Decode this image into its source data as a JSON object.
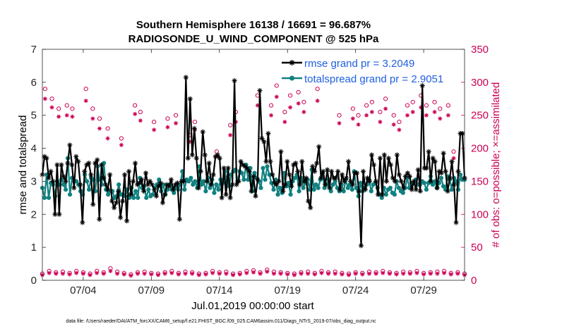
{
  "chart_data": {
    "type": "line",
    "title": "Southern Hemisphere 16138 / 16691 = 96.687%",
    "subtitle": "RADIOSONDE_U_WIND_COMPONENT @ 525 hPa",
    "xlabel": "Jul.01,2019 00:00:00 start",
    "ylabel_left": "rmse and totalspread",
    "ylabel_right": "# of obs: o=possible; ×=assimilated",
    "xlim": [
      1,
      32
    ],
    "ylim_left": [
      0,
      7
    ],
    "ylim_right": [
      0,
      350
    ],
    "x_ticks": [
      4,
      9,
      14,
      19,
      24,
      29
    ],
    "x_tick_labels": [
      "07/04",
      "07/09",
      "07/14",
      "07/19",
      "07/24",
      "07/29"
    ],
    "y_ticks_left": [
      0,
      1,
      2,
      3,
      4,
      5,
      6,
      7
    ],
    "y_ticks_right": [
      0,
      50,
      100,
      150,
      200,
      250,
      300,
      350
    ],
    "colors": {
      "rmse": "#000000",
      "spread": "#118080",
      "obs": "#cc0055",
      "legend_text": "#1f5fe0"
    },
    "legend": [
      {
        "name": "rmse grand pr = 3.2049",
        "key": "rmse"
      },
      {
        "name": "totalspread grand pr = 2.9051",
        "key": "spread"
      }
    ],
    "footer": "data file: /Users/raeder/DAI/ATM_forcXX/CAM6_setup/f.e21.FHIST_BGC.f09_025.CAM6assim.011/Diags_NTrS_2019-07/obs_diag_output.nc",
    "series": [
      {
        "name": "rmse",
        "axis": "left",
        "values": [
          3.2,
          3.75,
          3.7,
          3.1,
          3.3,
          3.0,
          2.0,
          3.5,
          2.0,
          3.5,
          3.15,
          3.0,
          3.55,
          4.1,
          3.5,
          2.8,
          3.75,
          3.6,
          2.9,
          1.75,
          3.3,
          3.5,
          3.55,
          3.2,
          2.3,
          3.55,
          3.65,
          1.85,
          3.5,
          3.1,
          2.9,
          2.75,
          3.2,
          2.4,
          2.2,
          2.35,
          2.7,
          1.9,
          2.4,
          3.2,
          1.8,
          3.3,
          2.6,
          3.0,
          3.55,
          2.9,
          2.95,
          3.05,
          2.7,
          3.25,
          2.9,
          3.0,
          2.9,
          2.75,
          2.55,
          2.85,
          2.95,
          2.35,
          2.6,
          2.9,
          2.85,
          3.05,
          2.75,
          2.9,
          2.95,
          1.85,
          3.0,
          3.0,
          6.15,
          3.7,
          5.5,
          3.8,
          4.6,
          3.7,
          2.8,
          3.3,
          4.5,
          3.8,
          3.0,
          3.55,
          2.9,
          3.2,
          3.75,
          3.8,
          3.7,
          2.5,
          3.4,
          2.6,
          3.4,
          2.5,
          2.9,
          6.05,
          2.9,
          3.0,
          3.6,
          3.5,
          3.45,
          3.4,
          3.3,
          2.7,
          3.15,
          2.55,
          3.05,
          5.75,
          4.3,
          4.2,
          3.6,
          4.45,
          3.6,
          3.2,
          2.95,
          2.9,
          3.0,
          3.9,
          2.7,
          2.9,
          3.6,
          3.2,
          2.85,
          3.5,
          3.55,
          3.3,
          2.9,
          3.6,
          3.0,
          3.1,
          2.4,
          2.2,
          3.45,
          3.3,
          3.55,
          4.05,
          3.1,
          3.3,
          2.9,
          3.35,
          2.8,
          3.3,
          3.1,
          3.1,
          3.3,
          2.75,
          3.2,
          3.0,
          3.1,
          3.6,
          3.0,
          2.9,
          3.25,
          3.25,
          2.7,
          1.05,
          3.3,
          2.75,
          3.1,
          3.0,
          3.8,
          3.5,
          3.0,
          2.6,
          3.7,
          2.6,
          3.8,
          3.0,
          3.7,
          3.5,
          3.1,
          3.0,
          3.8,
          3.2,
          3.0,
          2.8,
          3.15,
          3.25,
          3.15,
          2.75,
          3.0,
          2.75,
          3.35,
          2.7,
          5.9,
          3.4,
          3.4,
          3.9,
          3.0,
          3.7,
          3.6,
          2.8,
          3.3,
          3.25,
          3.85,
          3.3,
          2.7,
          3.1,
          3.6,
          2.9,
          1.75,
          3.3,
          4.45,
          4.45,
          3.1
        ]
      },
      {
        "name": "totalspread",
        "axis": "left",
        "values": [
          2.8,
          2.5,
          3.2,
          2.5,
          2.95,
          2.9,
          2.55,
          3.0,
          2.9,
          3.05,
          2.9,
          2.75,
          3.7,
          2.6,
          3.1,
          3.0,
          3.0,
          2.9,
          2.7,
          2.6,
          3.2,
          3.0,
          2.75,
          3.1,
          3.05,
          2.7,
          3.45,
          3.05,
          2.9,
          3.55,
          2.75,
          2.6,
          2.7,
          2.7,
          2.5,
          2.55,
          2.9,
          2.6,
          2.6,
          2.55,
          2.75,
          2.5,
          2.8,
          2.5,
          2.7,
          2.5,
          3.1,
          2.8,
          2.85,
          2.5,
          2.75,
          2.55,
          2.6,
          2.8,
          2.9,
          3.05,
          2.7,
          2.9,
          2.6,
          2.75,
          2.9,
          2.75,
          2.65,
          2.8,
          2.75,
          2.9,
          3.3,
          2.75,
          3.05,
          3.0,
          3.1,
          2.9,
          3.0,
          2.8,
          3.45,
          2.9,
          3.0,
          2.7,
          3.1,
          2.8,
          3.05,
          2.65,
          2.9,
          2.75,
          3.05,
          2.95,
          3.3,
          3.0,
          2.85,
          3.2,
          3.3,
          3.35,
          3.0,
          3.3,
          3.25,
          3.05,
          3.5,
          3.05,
          3.4,
          2.7,
          3.25,
          3.1,
          3.0,
          2.8,
          3.4,
          3.05,
          3.45,
          3.2,
          2.95,
          2.75,
          3.05,
          2.6,
          2.8,
          2.65,
          3.25,
          2.85,
          2.95,
          2.6,
          3.0,
          3.1,
          3.2,
          2.7,
          3.1,
          2.8,
          2.95,
          3.05,
          2.75,
          3.35,
          2.75,
          2.9,
          2.8,
          3.05,
          3.25,
          2.8,
          2.9,
          3.05,
          2.7,
          2.9,
          3.0,
          2.8,
          2.7,
          2.9,
          2.7,
          3.05,
          2.8,
          2.9,
          2.75,
          3.3,
          2.8,
          2.55,
          2.95,
          2.7,
          2.8,
          2.9,
          3.05,
          2.7,
          2.9,
          2.95,
          2.8,
          2.6,
          2.5,
          2.8,
          2.6,
          2.75,
          2.8,
          2.65,
          2.6,
          3.0,
          2.8,
          2.7,
          2.65,
          2.8,
          3.1,
          2.8,
          2.95,
          2.95,
          3.05,
          2.9,
          2.9,
          3.0,
          2.95,
          2.75,
          2.95,
          3.15,
          2.9,
          3.0,
          2.8,
          2.95,
          3.1,
          2.85,
          2.75,
          3.15,
          3.05,
          2.75,
          3.1,
          3.0,
          2.75,
          3.2,
          3.05,
          3.05
        ]
      }
    ],
    "obs_high": {
      "axis": "right",
      "x": [
        1.2,
        1.7,
        2.2,
        2.8,
        3.2,
        4.2,
        4.7,
        5.2,
        5.8,
        6.8,
        7.8,
        8.2,
        9.2,
        10.2,
        10.8,
        11.8,
        12.2,
        13.8,
        14.8,
        15.2,
        16.8,
        17.8,
        18.2,
        18.8,
        19.2,
        19.8,
        20.2,
        21.2,
        22.8,
        23.8,
        24.2,
        24.8,
        25.2,
        25.8,
        26.2,
        26.8,
        27.2,
        27.8,
        28.2,
        28.8,
        29.2,
        29.8,
        30.2,
        30.8,
        31.2
      ],
      "possible": [
        290,
        275,
        260,
        265,
        260,
        290,
        260,
        245,
        230,
        215,
        265,
        255,
        240,
        245,
        250,
        220,
        240,
        195,
        235,
        255,
        280,
        265,
        295,
        255,
        280,
        285,
        270,
        290,
        250,
        260,
        250,
        265,
        270,
        255,
        275,
        250,
        240,
        265,
        270,
        280,
        265,
        270,
        260,
        265,
        195
      ],
      "assimilated": [
        275,
        262,
        248,
        250,
        248,
        272,
        245,
        230,
        215,
        205,
        252,
        242,
        228,
        232,
        238,
        210,
        228,
        188,
        220,
        240,
        265,
        250,
        278,
        240,
        262,
        268,
        255,
        272,
        238,
        245,
        236,
        250,
        255,
        240,
        260,
        236,
        228,
        250,
        255,
        262,
        250,
        255,
        245,
        250,
        185
      ]
    },
    "obs_low": {
      "axis": "right",
      "x": [
        1.0,
        1.5,
        2.0,
        2.5,
        3.0,
        3.5,
        4.0,
        4.5,
        5.0,
        5.5,
        6.0,
        6.5,
        7.0,
        7.5,
        8.0,
        8.5,
        9.0,
        9.5,
        10.0,
        10.5,
        11.0,
        11.5,
        12.0,
        12.5,
        13.0,
        13.5,
        14.0,
        14.5,
        15.0,
        15.5,
        16.0,
        16.5,
        17.0,
        17.5,
        18.0,
        18.5,
        19.0,
        19.5,
        20.0,
        20.5,
        21.0,
        21.5,
        22.0,
        22.5,
        23.0,
        23.5,
        24.0,
        24.5,
        25.0,
        25.5,
        26.0,
        26.5,
        27.0,
        27.5,
        28.0,
        28.5,
        29.0,
        29.5,
        30.0,
        30.5,
        31.0,
        31.5,
        32.0
      ],
      "possible": [
        10,
        14,
        12,
        13,
        11,
        14,
        12,
        10,
        14,
        12,
        18,
        13,
        11,
        9,
        12,
        13,
        11,
        10,
        12,
        14,
        11,
        13,
        12,
        10,
        11,
        14,
        12,
        13,
        10,
        11,
        14,
        15,
        12,
        16,
        13,
        12,
        11,
        10,
        12,
        13,
        11,
        14,
        12,
        13,
        11,
        10,
        12,
        11,
        13,
        12,
        14,
        12,
        11,
        13,
        12,
        14,
        11,
        12,
        13,
        14,
        11,
        12,
        10
      ],
      "assimilated": [
        8,
        11,
        10,
        10,
        9,
        11,
        10,
        8,
        11,
        10,
        14,
        10,
        9,
        7,
        10,
        10,
        9,
        8,
        10,
        11,
        9,
        10,
        10,
        8,
        9,
        11,
        10,
        10,
        8,
        9,
        11,
        12,
        10,
        13,
        10,
        10,
        9,
        8,
        10,
        10,
        9,
        11,
        10,
        10,
        9,
        8,
        10,
        9,
        10,
        10,
        11,
        10,
        9,
        10,
        10,
        11,
        9,
        10,
        10,
        11,
        9,
        10,
        8
      ]
    }
  }
}
